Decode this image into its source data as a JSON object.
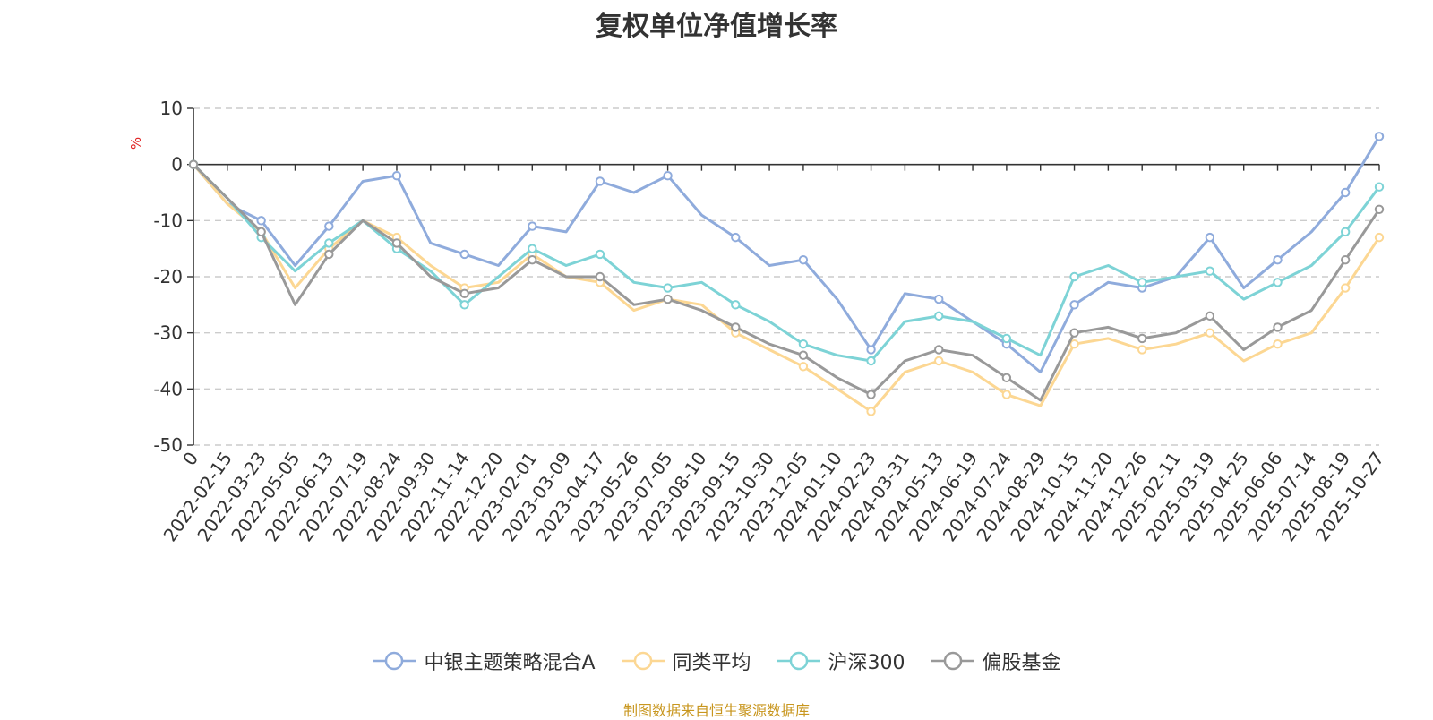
{
  "chart_data": {
    "type": "line",
    "title": "复权单位净值增长率",
    "ylabel": "%",
    "ylim": [
      -50,
      10
    ],
    "yticks": [
      10,
      0,
      -10,
      -20,
      -30,
      -40,
      -50
    ],
    "grid": true,
    "legend_position": "bottom-center",
    "categories": [
      "0",
      "2022-02-15",
      "2022-03-23",
      "2022-05-05",
      "2022-06-13",
      "2022-07-19",
      "2022-08-24",
      "2022-09-30",
      "2022-11-14",
      "2022-12-20",
      "2023-02-01",
      "2023-03-09",
      "2023-04-17",
      "2023-05-26",
      "2023-07-05",
      "2023-08-10",
      "2023-09-15",
      "2023-10-30",
      "2023-12-05",
      "2024-01-10",
      "2024-02-23",
      "2024-03-31",
      "2024-05-13",
      "2024-06-19",
      "2024-07-24",
      "2024-08-29",
      "2024-10-15",
      "2024-11-20",
      "2024-12-26",
      "2025-02-11",
      "2025-03-19",
      "2025-04-25",
      "2025-06-06",
      "2025-07-14",
      "2025-08-19",
      "2025-10-27"
    ],
    "series": [
      {
        "name": "中银主题策略混合A",
        "color": "#8fabdc",
        "values": [
          0,
          -7,
          -10,
          -18,
          -11,
          -3,
          -2,
          -14,
          -16,
          -18,
          -11,
          -12,
          -3,
          -5,
          -2,
          -9,
          -13,
          -18,
          -17,
          -24,
          -33,
          -23,
          -24,
          -28,
          -32,
          -37,
          -25,
          -21,
          -22,
          -20,
          -13,
          -22,
          -17,
          -12,
          -5,
          5
        ]
      },
      {
        "name": "同类平均",
        "color": "#fcd793",
        "values": [
          0,
          -7,
          -12,
          -22,
          -15,
          -10,
          -13,
          -18,
          -22,
          -21,
          -16,
          -20,
          -21,
          -26,
          -24,
          -25,
          -30,
          -33,
          -36,
          -40,
          -44,
          -37,
          -35,
          -37,
          -41,
          -43,
          -32,
          -31,
          -33,
          -32,
          -30,
          -35,
          -32,
          -30,
          -22,
          -13
        ]
      },
      {
        "name": "沪深300",
        "color": "#7dd3d6",
        "values": [
          0,
          -6,
          -13,
          -19,
          -14,
          -10,
          -15,
          -19,
          -25,
          -20,
          -15,
          -18,
          -16,
          -21,
          -22,
          -21,
          -25,
          -28,
          -32,
          -34,
          -35,
          -28,
          -27,
          -28,
          -31,
          -34,
          -20,
          -18,
          -21,
          -20,
          -19,
          -24,
          -21,
          -18,
          -12,
          -4
        ]
      },
      {
        "name": "偏股基金",
        "color": "#999999",
        "values": [
          0,
          -6,
          -12,
          -25,
          -16,
          -10,
          -14,
          -20,
          -23,
          -22,
          -17,
          -20,
          -20,
          -25,
          -24,
          -26,
          -29,
          -32,
          -34,
          -38,
          -41,
          -35,
          -33,
          -34,
          -38,
          -42,
          -30,
          -29,
          -31,
          -30,
          -27,
          -33,
          -29,
          -26,
          -17,
          -8
        ]
      }
    ]
  },
  "source_note": "制图数据来自恒生聚源数据库"
}
